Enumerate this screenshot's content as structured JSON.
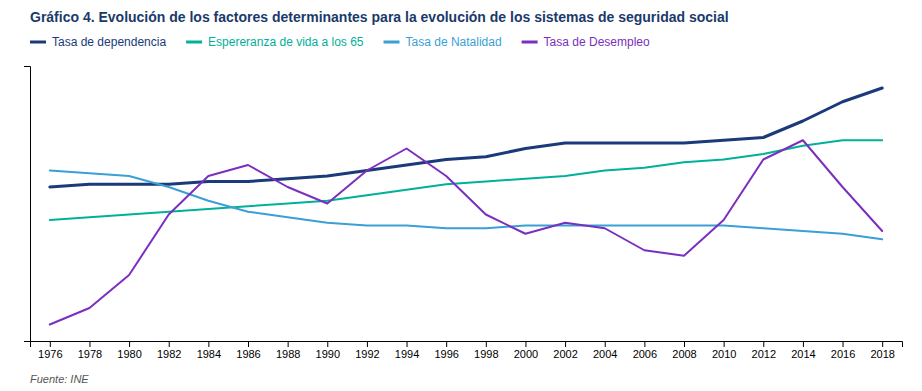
{
  "chart_data": {
    "type": "line",
    "title": "Gráfico 4. Evolución de los factores determinantes para la evolución de los sistemas de seguridad social",
    "annotations": [
      "Fuente: INE"
    ],
    "x": [
      1976,
      1978,
      1980,
      1982,
      1984,
      1986,
      1988,
      1990,
      1992,
      1994,
      1996,
      1998,
      2000,
      2002,
      2004,
      2006,
      2008,
      2010,
      2012,
      2014,
      2016,
      2018
    ],
    "series": [
      {
        "name": "Tasa de dependencia",
        "color": "#1a3a7a",
        "values": [
          0.56,
          0.57,
          0.57,
          0.57,
          0.58,
          0.58,
          0.59,
          0.6,
          0.62,
          0.64,
          0.66,
          0.67,
          0.7,
          0.72,
          0.72,
          0.72,
          0.72,
          0.73,
          0.74,
          0.8,
          0.87,
          0.92
        ]
      },
      {
        "name": "Espereranza de vida a los 65",
        "color": "#00b09b",
        "values": [
          0.44,
          0.45,
          0.46,
          0.47,
          0.48,
          0.49,
          0.5,
          0.51,
          0.53,
          0.55,
          0.57,
          0.58,
          0.59,
          0.6,
          0.62,
          0.63,
          0.65,
          0.66,
          0.68,
          0.71,
          0.73,
          0.73
        ]
      },
      {
        "name": "Tasa de Natalidad",
        "color": "#3a9fd5",
        "values": [
          0.62,
          0.61,
          0.6,
          0.56,
          0.51,
          0.47,
          0.45,
          0.43,
          0.42,
          0.42,
          0.41,
          0.41,
          0.42,
          0.42,
          0.42,
          0.42,
          0.42,
          0.42,
          0.41,
          0.4,
          0.39,
          0.37
        ]
      },
      {
        "name": "Tasa de Desempleo",
        "color": "#7b2fbe",
        "values": [
          0.06,
          0.12,
          0.24,
          0.46,
          0.6,
          0.64,
          0.56,
          0.5,
          0.62,
          0.7,
          0.6,
          0.46,
          0.39,
          0.43,
          0.41,
          0.33,
          0.31,
          0.44,
          0.66,
          0.73,
          0.56,
          0.4
        ]
      }
    ],
    "xlim": [
      1975,
      2019
    ],
    "xticks": [
      1976,
      1978,
      1980,
      1982,
      1984,
      1986,
      1988,
      1990,
      1992,
      1994,
      1996,
      1998,
      2000,
      2002,
      2004,
      2006,
      2008,
      2010,
      2012,
      2014,
      2016,
      2018
    ],
    "ylim": [
      0.0,
      1.0
    ],
    "yticks": [],
    "grid": false,
    "legend": "top-left",
    "tick_labels": "x"
  }
}
